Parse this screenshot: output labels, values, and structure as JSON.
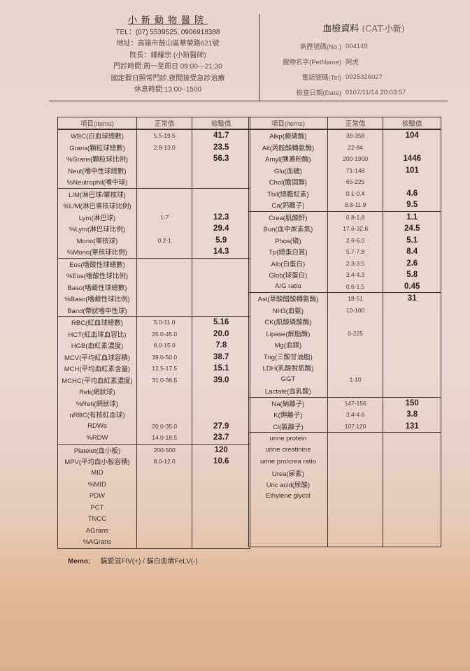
{
  "clinic": {
    "name": "小新動物醫院",
    "tel": "TEL：(07) 5539525, 0906918388",
    "address": "地址：高雄市鼓山區華榮路621號",
    "director": "院長：鍾耀宗 (小新醫師)",
    "hours": "門診時間:周一至周日 09:00---21:30",
    "holiday": "國定假日照常門診,夜間接受急診治療",
    "break": "休息時間:13:00~1500"
  },
  "report": {
    "title": "血檢資料",
    "subtitle": "(CAT-小新)",
    "fields": [
      {
        "label": "病歷號碼(No.)",
        "value": "004149"
      },
      {
        "label": "寵物名字(PetName)",
        "value": "阿虎"
      },
      {
        "label": "電話號碼(Tel)",
        "value": "0925326027"
      },
      {
        "label": "檢查日期(Date)",
        "value": "0107/11/14 20:03:57"
      }
    ]
  },
  "columns": {
    "item": "項目(items)",
    "normal": "正常值",
    "value": "檢驗值"
  },
  "left_table": [
    [
      [
        "WBC(白血球總數)",
        "5.5-19.5",
        "41.7"
      ],
      [
        "Grans(顆粒球總數)",
        "2.8-13.0",
        "23.5"
      ],
      [
        "%Grans(顆粒球比例)",
        "",
        "56.3"
      ],
      [
        "Neut(嗜中性球總數)",
        "",
        ""
      ],
      [
        "%Neutrophil(嗜中球)",
        "",
        ""
      ]
    ],
    [
      [
        "L/M(淋巴球/單核球)",
        "",
        ""
      ],
      [
        "%L/M(淋巴單核球比例)",
        "",
        ""
      ],
      [
        "Lym(淋巴球)",
        "1-7",
        "12.3"
      ],
      [
        "%Lym(淋巴球比例)",
        "",
        "29.4"
      ],
      [
        "Mono(單核球)",
        "0.2-1",
        "5.9"
      ],
      [
        "%Mono(單核球比例)",
        "",
        "14.3"
      ]
    ],
    [
      [
        "Eos(嗜酸性球總數)",
        "",
        ""
      ],
      [
        "%Eos(嗜酸性球比例)",
        "",
        ""
      ],
      [
        "Baso(嗜鹼性球總數)",
        "",
        ""
      ],
      [
        "%Baso(嗜鹼性球比例)",
        "",
        ""
      ],
      [
        "Band(帶狀嗜中性球)",
        "",
        ""
      ]
    ],
    [
      [
        "RBC(紅血球總數)",
        "5.0-11.0",
        "5.16"
      ],
      [
        "HCT(紅血球血容比)",
        "25.0-45.0",
        "20.0"
      ],
      [
        "HGB(血紅素濃度)",
        "8.0-15.0",
        "7.8"
      ],
      [
        "MCV(平均紅血球容積)",
        "39.0-50.0",
        "38.7"
      ],
      [
        "MCH(平均血紅素含量)",
        "12.5-17.5",
        "15.1"
      ],
      [
        "MCHC(平均血紅素濃度)",
        "31.0-38.5",
        "39.0"
      ],
      [
        "Reti(網狀球)",
        "",
        ""
      ],
      [
        "%Reti(網狀球)",
        "",
        ""
      ],
      [
        "nRBC(有核紅血球)",
        "",
        ""
      ],
      [
        "RDWa",
        "20.0-35.0",
        "27.9"
      ],
      [
        "%RDW",
        "14.0-18.5",
        "23.7"
      ]
    ],
    [
      [
        "Platelet(血小板)",
        "200-500",
        "120"
      ],
      [
        "MPV(平均血小板容積)",
        "8.0-12.0",
        "10.6"
      ],
      [
        "MID",
        "",
        ""
      ],
      [
        "%MID",
        "",
        ""
      ],
      [
        "PDW",
        "",
        ""
      ],
      [
        "PCT",
        "",
        ""
      ],
      [
        "TNCC",
        "",
        ""
      ],
      [
        "AGrans",
        "",
        ""
      ],
      [
        "%AGrans",
        "",
        ""
      ]
    ]
  ],
  "right_table": [
    [
      [
        "Alkp(鹼磷酶)",
        "38-358",
        "104"
      ],
      [
        "Alt(丙胺酸轉氨酶)",
        "22-84",
        ""
      ],
      [
        "Amyl(胰澱粉酶)",
        "200-1900",
        "1446"
      ],
      [
        "Glu(血糖)",
        "71-148",
        "101"
      ],
      [
        "Chol(膽固醇)",
        "65-225",
        ""
      ],
      [
        "Tbil(總膽紅素)",
        "0.1-0.4",
        "4.6"
      ],
      [
        "Ca(鈣離子)",
        "8.8-11.9",
        "9.5"
      ]
    ],
    [
      [
        "Crea(肌酸酐)",
        "0.8-1.8",
        "1.1"
      ],
      [
        "Bun(血中尿素氮)",
        "17.6-32.8",
        "24.5"
      ],
      [
        "Phos(磷)",
        "2.6-6.0",
        "5.1"
      ],
      [
        "Tp(總蛋白質)",
        "5.7-7.8",
        "8.4"
      ],
      [
        "Alb(白蛋白)",
        "2.3-3.5",
        "2.6"
      ],
      [
        "Glob(球蛋白)",
        "3.4-4.3",
        "5.8"
      ],
      [
        "A/G ratio",
        "0.6-1.5",
        "0.45"
      ]
    ],
    [
      [
        "Ast(草酸醋酸轉氨酶)",
        "18-51",
        "31"
      ],
      [
        "NH3(血氨)",
        "10-100",
        ""
      ],
      [
        "CK(肌酸磷酸酶)",
        "",
        ""
      ],
      [
        "Lipase(解脂酶)",
        "0-225",
        ""
      ],
      [
        "Mg(血鎂)",
        "",
        ""
      ],
      [
        "Trig(三酸甘油脂)",
        "",
        ""
      ],
      [
        "LDH(乳酸脫氫酶)",
        "",
        ""
      ],
      [
        "GGT",
        "1-10",
        ""
      ],
      [
        "Lactate(血乳酸)",
        "",
        ""
      ]
    ],
    [
      [
        "Na(鈉離子)",
        "147-156",
        "150"
      ],
      [
        "K(鉀離子)",
        "3.4-4.6",
        "3.8"
      ],
      [
        "Cl(氯離子)",
        "107.120",
        "131"
      ]
    ],
    [
      [
        "urine protein",
        "",
        ""
      ],
      [
        "urine creatinine",
        "",
        ""
      ],
      [
        "urine pro/crea ratio",
        "",
        ""
      ],
      [
        "Urea(尿素)",
        "",
        ""
      ],
      [
        "Uric acid(尿酸)",
        "",
        ""
      ],
      [
        "Ethylene glycol",
        "",
        ""
      ]
    ]
  ],
  "memo": {
    "label": "Memo:",
    "text": "貓愛滋FIV(+) / 貓白血病FeLV(-)"
  }
}
